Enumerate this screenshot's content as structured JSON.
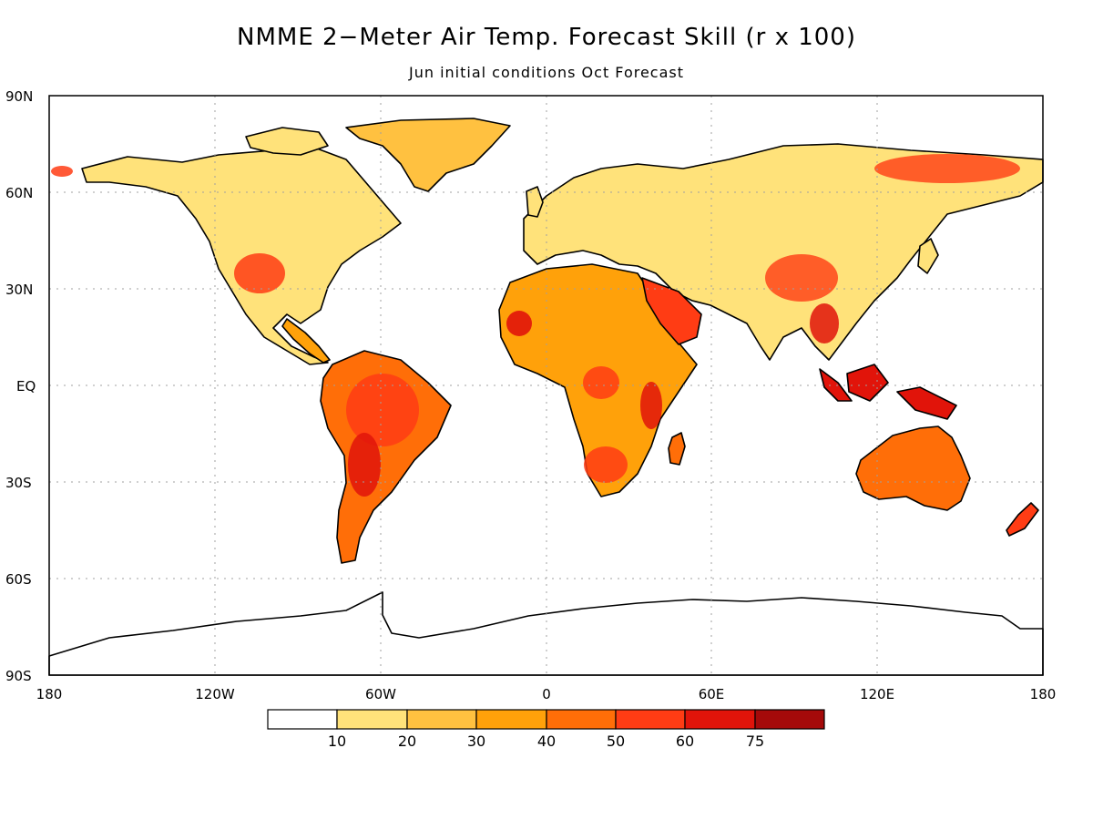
{
  "title": "NMME 2−Meter Air Temp. Forecast Skill (r x 100)",
  "subtitle": "Jun initial conditions  Oct Forecast",
  "map": {
    "lat_labels": [
      "90N",
      "60N",
      "30N",
      "EQ",
      "30S",
      "60S",
      "90S"
    ],
    "lon_labels": [
      "180",
      "120W",
      "60W",
      "0",
      "60E",
      "120E",
      "180"
    ],
    "grid": true,
    "projection": "equirectangular"
  },
  "colorbar": {
    "levels": [
      "10",
      "20",
      "30",
      "40",
      "50",
      "60",
      "75"
    ],
    "colors": [
      "#ffffff",
      "#ffe27a",
      "#ffc140",
      "#ffa10a",
      "#ff6e08",
      "#ff3c14",
      "#e1140a",
      "#a50a0a"
    ]
  },
  "palette": {
    "land_skill_low": "#ffe27a",
    "land_skill_mid": "#ffa10a",
    "land_skill_high": "#ff3c14",
    "land_skill_max": "#e1140a",
    "coastline": "#000000"
  }
}
